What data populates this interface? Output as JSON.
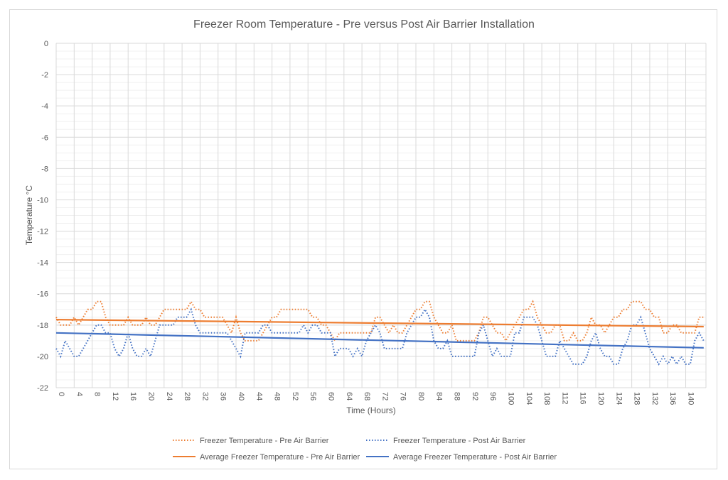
{
  "chart_data": {
    "type": "line",
    "title": "Freezer Room Temperature - Pre versus Post Air Barrier Installation",
    "xlabel": "Time (Hours)",
    "ylabel": "Temperature °C",
    "xlim": [
      0,
      144.5
    ],
    "ylim": [
      -22,
      0
    ],
    "x_ticks": [
      0,
      4,
      8,
      12,
      16,
      20,
      24,
      28,
      32,
      36,
      40,
      44,
      48,
      52,
      56,
      60,
      64,
      68,
      72,
      76,
      80,
      84,
      88,
      92,
      96,
      100,
      104,
      108,
      112,
      116,
      120,
      124,
      128,
      132,
      136,
      140
    ],
    "y_ticks": [
      0,
      -2,
      -4,
      -6,
      -8,
      -10,
      -12,
      -14,
      -16,
      -18,
      -20,
      -22
    ],
    "grid": true,
    "legend_position": "bottom",
    "series": [
      {
        "name": "Freezer Temperature - Pre Air Barrier",
        "color": "#ED7D31",
        "style": "dotted",
        "values": [
          -17.5,
          -18,
          -18,
          -18,
          -17.5,
          -18,
          -17.5,
          -17,
          -17,
          -16.5,
          -16.5,
          -17.5,
          -18,
          -18,
          -18,
          -18,
          -17.5,
          -18,
          -18,
          -18,
          -17.5,
          -18,
          -18,
          -17.5,
          -17,
          -17,
          -17,
          -17,
          -17,
          -17,
          -16.5,
          -17,
          -17,
          -17.5,
          -17.5,
          -17.5,
          -17.5,
          -17.5,
          -18,
          -18.5,
          -17.5,
          -18.5,
          -19,
          -19,
          -19,
          -19,
          -18.5,
          -18,
          -17.5,
          -17.5,
          -17,
          -17,
          -17,
          -17,
          -17,
          -17,
          -17,
          -17.5,
          -17.5,
          -18,
          -18,
          -18.5,
          -19,
          -18.5,
          -18.5,
          -18.5,
          -18.5,
          -18.5,
          -18.5,
          -18.5,
          -18.5,
          -17.5,
          -17.5,
          -18,
          -18.5,
          -18,
          -18.5,
          -18.5,
          -18,
          -17.5,
          -17,
          -17,
          -16.5,
          -16.5,
          -17.5,
          -18,
          -18.5,
          -18.5,
          -18,
          -19,
          -19,
          -19,
          -19,
          -19,
          -18.5,
          -17.5,
          -17.5,
          -18,
          -18.5,
          -18.5,
          -19,
          -18.5,
          -18,
          -17.5,
          -17,
          -17,
          -16.5,
          -17.5,
          -18,
          -18.5,
          -18.5,
          -18,
          -18,
          -19,
          -19,
          -18.5,
          -19,
          -19,
          -18.5,
          -17.5,
          -18,
          -18,
          -18.5,
          -18,
          -17.5,
          -17.5,
          -17,
          -17,
          -16.5,
          -16.5,
          -16.5,
          -17,
          -17,
          -17.5,
          -17.5,
          -18.5,
          -18.5,
          -18,
          -18,
          -18.5,
          -18.5,
          -18.5,
          -18.5,
          -17.5,
          -17.5
        ]
      },
      {
        "name": "Freezer Temperature - Post Air Barrier",
        "color": "#4472C4",
        "style": "dotted",
        "values": [
          -19.5,
          -20,
          -19,
          -19.5,
          -20,
          -20,
          -19.5,
          -19,
          -18.5,
          -18,
          -18,
          -18.5,
          -18.5,
          -19.5,
          -20,
          -19.5,
          -18.5,
          -19.5,
          -20,
          -20,
          -19.5,
          -20,
          -19,
          -18,
          -18,
          -18,
          -18,
          -17.5,
          -17.5,
          -17.5,
          -17,
          -18,
          -18.5,
          -18.5,
          -18.5,
          -18.5,
          -18.5,
          -18.5,
          -18.5,
          -19,
          -19.5,
          -20,
          -18.5,
          -18.5,
          -18.5,
          -18.5,
          -18,
          -18,
          -18.5,
          -18.5,
          -18.5,
          -18.5,
          -18.5,
          -18.5,
          -18.5,
          -18,
          -18.5,
          -18,
          -18,
          -18.5,
          -18.5,
          -18.5,
          -20,
          -19.5,
          -19.5,
          -19.5,
          -20,
          -19.5,
          -20,
          -19,
          -18.5,
          -18,
          -18.5,
          -19.5,
          -19.5,
          -19.5,
          -19.5,
          -19.5,
          -18.5,
          -18,
          -17.5,
          -17.5,
          -17,
          -17.5,
          -19,
          -19.5,
          -19.5,
          -19,
          -20,
          -20,
          -20,
          -20,
          -20,
          -20,
          -18.5,
          -18,
          -19,
          -20,
          -19.5,
          -20,
          -20,
          -20,
          -18.5,
          -18.5,
          -17.5,
          -17.5,
          -17.5,
          -18,
          -19,
          -20,
          -20,
          -20,
          -19,
          -19.5,
          -20,
          -20.5,
          -20.5,
          -20.5,
          -20,
          -19,
          -18.5,
          -19.5,
          -20,
          -20,
          -20.5,
          -20.5,
          -19.5,
          -19,
          -18,
          -18,
          -17.5,
          -18.5,
          -19.5,
          -20,
          -20.5,
          -20,
          -20.5,
          -20,
          -20.5,
          -20,
          -20.5,
          -20.5,
          -19,
          -18.5,
          -19
        ]
      },
      {
        "name": "Average Freezer Temperature - Pre Air Barrier",
        "color": "#ED7D31",
        "style": "solid",
        "values_endpoints": [
          -17.65,
          -18.1
        ]
      },
      {
        "name": "Average  Freezer Temperature - Post Air Barrier",
        "color": "#4472C4",
        "style": "solid",
        "values_endpoints": [
          -18.5,
          -19.45
        ]
      }
    ]
  }
}
